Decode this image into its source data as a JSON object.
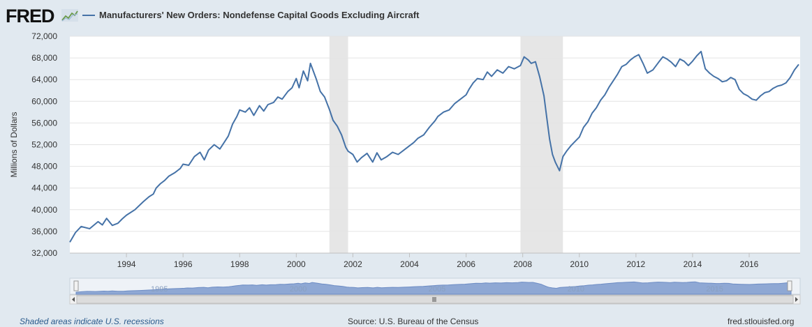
{
  "header": {
    "logo": "FRED",
    "logo_icon": "trend-line-icon",
    "series_label": "Manufacturers' New Orders: Nondefense Capital Goods Excluding Aircraft"
  },
  "footer": {
    "recession_note": "Shaded areas indicate U.S. recessions",
    "source": "Source: U.S. Bureau of the Census",
    "site": "fred.stlouisfed.org"
  },
  "colors": {
    "line": "#4572a7",
    "recession": "#e6e6e6",
    "navigator_fill": "#8fa8d4"
  },
  "chart_data": {
    "type": "line",
    "ylabel": "Millions of Dollars",
    "ylim": [
      32000,
      72000
    ],
    "yticks": [
      32000,
      36000,
      40000,
      44000,
      48000,
      52000,
      56000,
      60000,
      64000,
      68000,
      72000
    ],
    "ytick_labels": [
      "32,000",
      "36,000",
      "40,000",
      "44,000",
      "48,000",
      "52,000",
      "56,000",
      "60,000",
      "64,000",
      "68,000",
      "72,000"
    ],
    "xlim": [
      1992.0,
      2017.8
    ],
    "xticks": [
      1994,
      1996,
      1998,
      2000,
      2002,
      2004,
      2006,
      2008,
      2010,
      2012,
      2014,
      2016
    ],
    "xtick_labels": [
      "1994",
      "1996",
      "1998",
      "2000",
      "2002",
      "2004",
      "2006",
      "2008",
      "2010",
      "2012",
      "2014",
      "2016"
    ],
    "grid": true,
    "legend": "top-left",
    "recessions": [
      [
        2001.17,
        2001.83
      ],
      [
        2007.92,
        2009.42
      ]
    ],
    "navigator_labels": [
      "1995",
      "2000",
      "2005",
      "2010",
      "2015"
    ],
    "navigator_label_x": [
      1995,
      2000,
      2005,
      2010,
      2015
    ],
    "series": [
      {
        "name": "Manufacturers' New Orders: Nondefense Capital Goods Excluding Aircraft",
        "x": [
          1992.0,
          1992.2,
          1992.4,
          1992.7,
          1993.0,
          1993.15,
          1993.3,
          1993.5,
          1993.7,
          1993.85,
          1994.0,
          1994.3,
          1994.6,
          1994.8,
          1994.95,
          1995.05,
          1995.2,
          1995.35,
          1995.5,
          1995.7,
          1995.9,
          1996.0,
          1996.2,
          1996.4,
          1996.6,
          1996.75,
          1996.9,
          1997.1,
          1997.3,
          1997.5,
          1997.6,
          1997.75,
          1997.9,
          1998.0,
          1998.2,
          1998.35,
          1998.5,
          1998.7,
          1998.85,
          1999.0,
          1999.2,
          1999.35,
          1999.5,
          1999.7,
          1999.85,
          2000.0,
          2000.1,
          2000.25,
          2000.4,
          2000.5,
          2000.7,
          2000.85,
          2001.0,
          2001.17,
          2001.3,
          2001.45,
          2001.6,
          2001.75,
          2001.83,
          2002.0,
          2002.15,
          2002.3,
          2002.5,
          2002.7,
          2002.85,
          2003.0,
          2003.2,
          2003.4,
          2003.6,
          2003.8,
          2004.0,
          2004.15,
          2004.3,
          2004.5,
          2004.7,
          2004.9,
          2005.0,
          2005.2,
          2005.4,
          2005.6,
          2005.8,
          2006.0,
          2006.1,
          2006.25,
          2006.4,
          2006.6,
          2006.75,
          2006.9,
          2007.1,
          2007.3,
          2007.5,
          2007.7,
          2007.92,
          2008.05,
          2008.2,
          2008.3,
          2008.45,
          2008.6,
          2008.75,
          2008.85,
          2008.95,
          2009.05,
          2009.15,
          2009.3,
          2009.42,
          2009.55,
          2009.7,
          2009.85,
          2010.0,
          2010.15,
          2010.3,
          2010.45,
          2010.6,
          2010.75,
          2010.9,
          2011.05,
          2011.2,
          2011.35,
          2011.5,
          2011.65,
          2011.8,
          2011.95,
          2012.1,
          2012.25,
          2012.4,
          2012.6,
          2012.8,
          2012.95,
          2013.1,
          2013.25,
          2013.4,
          2013.55,
          2013.7,
          2013.85,
          2014.0,
          2014.15,
          2014.3,
          2014.45,
          2014.6,
          2014.75,
          2014.9,
          2015.05,
          2015.2,
          2015.35,
          2015.5,
          2015.65,
          2015.8,
          2015.95,
          2016.1,
          2016.25,
          2016.4,
          2016.55,
          2016.7,
          2016.85,
          2017.0,
          2017.15,
          2017.3,
          2017.45,
          2017.6,
          2017.75
        ],
        "values": [
          34000,
          35800,
          36900,
          36500,
          37800,
          37200,
          38400,
          37100,
          37500,
          38300,
          39000,
          40000,
          41500,
          42400,
          42900,
          44000,
          44800,
          45400,
          46200,
          46800,
          47600,
          48400,
          48200,
          49800,
          50600,
          49200,
          51000,
          52000,
          51200,
          52800,
          53600,
          55800,
          57200,
          58400,
          58000,
          58800,
          57400,
          59200,
          58200,
          59400,
          59800,
          60800,
          60400,
          61800,
          62500,
          64200,
          62500,
          65600,
          63800,
          67000,
          64200,
          61800,
          60800,
          58500,
          56500,
          55400,
          53800,
          51500,
          50800,
          50200,
          48800,
          49600,
          50400,
          48800,
          50500,
          49200,
          49800,
          50600,
          50200,
          51000,
          51800,
          52400,
          53200,
          53800,
          55200,
          56400,
          57200,
          58000,
          58400,
          59600,
          60400,
          61200,
          62200,
          63400,
          64200,
          64000,
          65400,
          64600,
          65800,
          65200,
          66400,
          66000,
          66600,
          68200,
          67600,
          67000,
          67300,
          64500,
          61000,
          57000,
          53000,
          50200,
          48800,
          47200,
          49800,
          50800,
          51800,
          52600,
          53400,
          55200,
          56200,
          57800,
          58800,
          60200,
          61200,
          62600,
          63800,
          65000,
          66400,
          66800,
          67600,
          68200,
          68600,
          67000,
          65200,
          65800,
          67200,
          68200,
          67800,
          67200,
          66400,
          67800,
          67400,
          66600,
          67400,
          68400,
          69200,
          66000,
          65200,
          64600,
          64200,
          63600,
          63800,
          64400,
          64000,
          62200,
          61400,
          61000,
          60400,
          60200,
          61000,
          61600,
          61800,
          62400,
          62800,
          63000,
          63400,
          64400,
          65800,
          66800
        ]
      }
    ]
  }
}
